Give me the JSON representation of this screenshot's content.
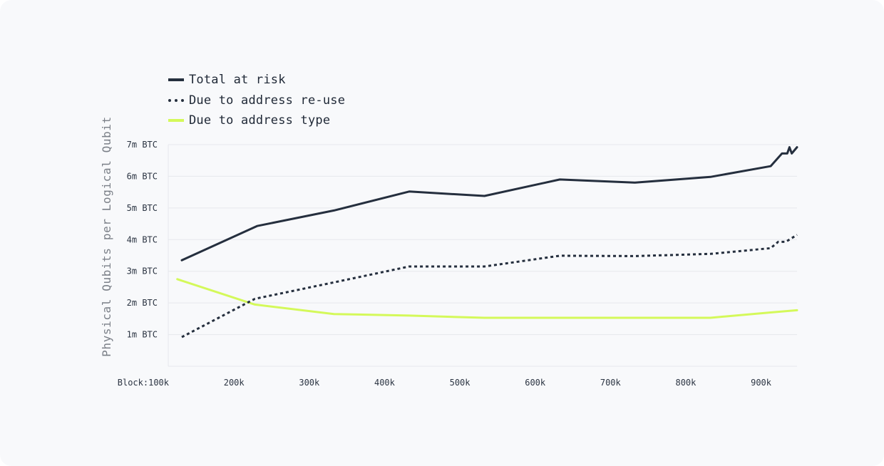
{
  "colors": {
    "background": "#f8f9fb",
    "total": "#252f3e",
    "reuse": "#252f3e",
    "type": "#d4f95a",
    "grid": "#e6e8ec",
    "tick_text": "#2b3442",
    "axis_title": "#7b8088"
  },
  "legend": [
    {
      "label": "Total at risk",
      "style": "solid"
    },
    {
      "label": "Due to address re-use",
      "style": "dotted"
    },
    {
      "label": "Due to address type",
      "style": "lime"
    }
  ],
  "chart_data": {
    "type": "line",
    "ylabel": "Physical Qubits per Logical Qubit",
    "xlabel": "",
    "ylim": [
      0,
      7
    ],
    "xlim": [
      100,
      935
    ],
    "yticks": [
      {
        "value": 1,
        "label": "1m BTC"
      },
      {
        "value": 2,
        "label": "2m BTC"
      },
      {
        "value": 3,
        "label": "3m BTC"
      },
      {
        "value": 4,
        "label": "4m BTC"
      },
      {
        "value": 5,
        "label": "5m BTC"
      },
      {
        "value": 6,
        "label": "6m BTC"
      },
      {
        "value": 7,
        "label": "7m BTC"
      }
    ],
    "xticks": [
      {
        "value": 100,
        "label": "Block:100k"
      },
      {
        "value": 200,
        "label": "200k"
      },
      {
        "value": 300,
        "label": "300k"
      },
      {
        "value": 400,
        "label": "400k"
      },
      {
        "value": 500,
        "label": "500k"
      },
      {
        "value": 600,
        "label": "600k"
      },
      {
        "value": 700,
        "label": "700k"
      },
      {
        "value": 800,
        "label": "800k"
      },
      {
        "value": 900,
        "label": "900k"
      }
    ],
    "grid": "horizontal",
    "legend_position": "top-left",
    "series": [
      {
        "name": "Total at risk",
        "style": "solid",
        "points": [
          [
            118,
            3.35
          ],
          [
            218,
            4.43
          ],
          [
            320,
            4.92
          ],
          [
            420,
            5.52
          ],
          [
            520,
            5.38
          ],
          [
            620,
            5.9
          ],
          [
            720,
            5.8
          ],
          [
            820,
            5.98
          ],
          [
            900,
            6.32
          ],
          [
            915,
            6.72
          ],
          [
            922,
            6.72
          ],
          [
            925,
            6.92
          ],
          [
            928,
            6.72
          ],
          [
            935,
            6.92
          ]
        ]
      },
      {
        "name": "Due to address re-use",
        "style": "dotted",
        "points": [
          [
            118,
            0.92
          ],
          [
            215,
            2.13
          ],
          [
            320,
            2.65
          ],
          [
            420,
            3.15
          ],
          [
            520,
            3.15
          ],
          [
            620,
            3.49
          ],
          [
            720,
            3.48
          ],
          [
            820,
            3.55
          ],
          [
            900,
            3.73
          ],
          [
            910,
            3.93
          ],
          [
            920,
            3.93
          ],
          [
            935,
            4.15
          ]
        ]
      },
      {
        "name": "Due to address type",
        "style": "lime",
        "points": [
          [
            112,
            2.75
          ],
          [
            215,
            1.95
          ],
          [
            320,
            1.65
          ],
          [
            420,
            1.6
          ],
          [
            520,
            1.53
          ],
          [
            620,
            1.53
          ],
          [
            720,
            1.53
          ],
          [
            820,
            1.53
          ],
          [
            900,
            1.7
          ],
          [
            935,
            1.77
          ]
        ]
      }
    ]
  }
}
